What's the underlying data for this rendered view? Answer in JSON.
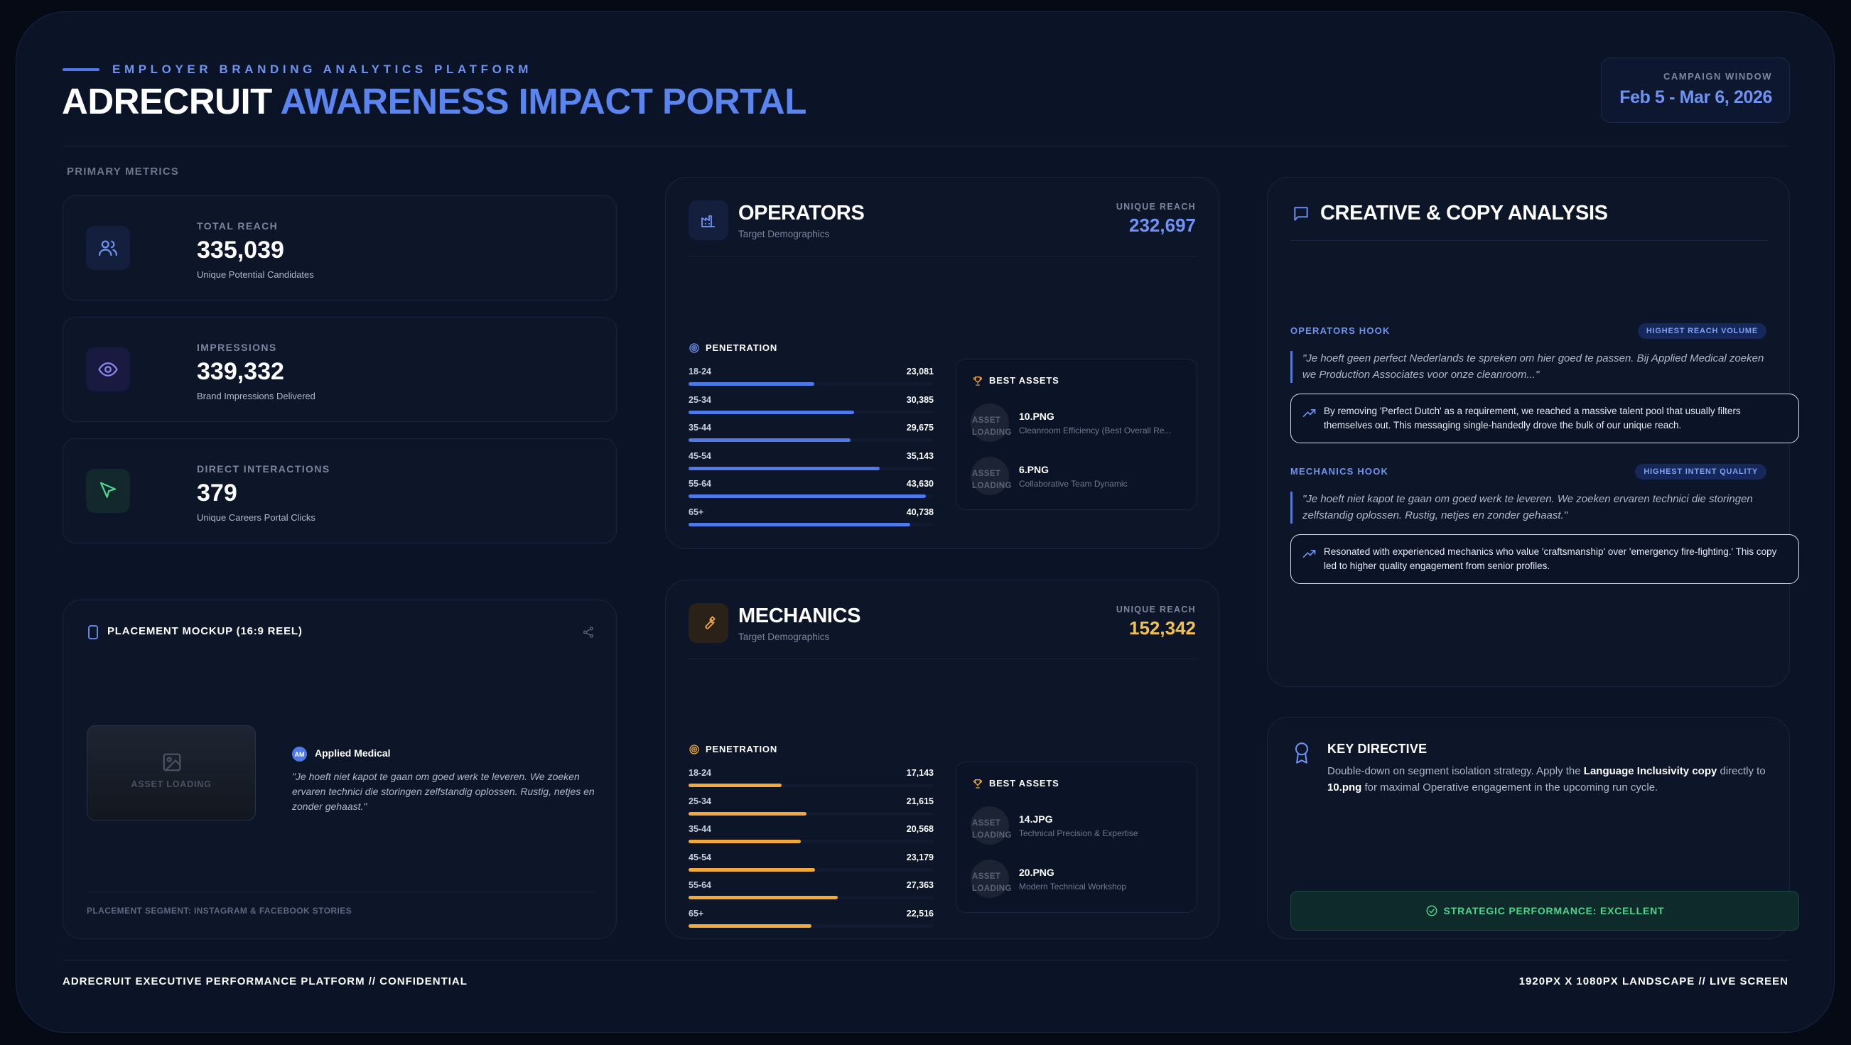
{
  "header": {
    "kicker": "EMPLOYER BRANDING ANALYTICS PLATFORM",
    "title_main": "ADRECRUIT",
    "title_accent": "AWARENESS IMPACT PORTAL",
    "campaign_label": "CAMPAIGN WINDOW",
    "campaign_value": "Feb 5 - Mar 6, 2026"
  },
  "metrics": {
    "section_label": "PRIMARY METRICS",
    "items": [
      {
        "label": "TOTAL REACH",
        "value": "335,039",
        "sub": "Unique Potential Candidates",
        "icon": "users-icon"
      },
      {
        "label": "IMPRESSIONS",
        "value": "339,332",
        "sub": "Brand Impressions Delivered",
        "icon": "eye-icon"
      },
      {
        "label": "DIRECT INTERACTIONS",
        "value": "379",
        "sub": "Unique Careers Portal Clicks",
        "icon": "cursor-icon"
      }
    ]
  },
  "mockup": {
    "title": "PLACEMENT MOCKUP (16:9 REEL)",
    "asset_loading": "ASSET LOADING",
    "brand_initials": "AM",
    "brand_name": "Applied Medical",
    "quote": "\"Je hoeft niet kapot te gaan om goed werk te leveren. We zoeken ervaren technici die storingen zelfstandig oplossen. Rustig, netjes en zonder gehaast.\"",
    "footer": "PLACEMENT SEGMENT: INSTAGRAM & FACEBOOK STORIES"
  },
  "segments": [
    {
      "name": "OPERATORS",
      "sub": "Target Demographics",
      "reach_label": "UNIQUE REACH",
      "reach_value": "232,697",
      "penetration_label": "PENETRATION",
      "best_label": "BEST ASSETS",
      "color": "#4f78e8",
      "rows": [
        {
          "label": "18-24",
          "value": "23,081",
          "n": 23081
        },
        {
          "label": "25-34",
          "value": "30,385",
          "n": 30385
        },
        {
          "label": "35-44",
          "value": "29,675",
          "n": 29675
        },
        {
          "label": "45-54",
          "value": "35,143",
          "n": 35143
        },
        {
          "label": "55-64",
          "value": "43,630",
          "n": 43630
        },
        {
          "label": "65+",
          "value": "40,738",
          "n": 40738
        }
      ],
      "assets": [
        {
          "name": "10.PNG",
          "desc": "Cleanroom Efficiency (Best Overall Re...",
          "placeholder": "ASSET LOADING"
        },
        {
          "name": "6.PNG",
          "desc": "Collaborative Team Dynamic",
          "placeholder": "ASSET LOADING"
        }
      ]
    },
    {
      "name": "MECHANICS",
      "sub": "Target Demographics",
      "reach_label": "UNIQUE REACH",
      "reach_value": "152,342",
      "penetration_label": "PENETRATION",
      "best_label": "BEST ASSETS",
      "color": "#f2a93b",
      "rows": [
        {
          "label": "18-24",
          "value": "17,143",
          "n": 17143
        },
        {
          "label": "25-34",
          "value": "21,615",
          "n": 21615
        },
        {
          "label": "35-44",
          "value": "20,568",
          "n": 20568
        },
        {
          "label": "45-54",
          "value": "23,179",
          "n": 23179
        },
        {
          "label": "55-64",
          "value": "27,363",
          "n": 27363
        },
        {
          "label": "65+",
          "value": "22,516",
          "n": 22516
        }
      ],
      "assets": [
        {
          "name": "14.JPG",
          "desc": "Technical Precision & Expertise",
          "placeholder": "ASSET LOADING"
        },
        {
          "name": "20.PNG",
          "desc": "Modern Technical Workshop",
          "placeholder": "ASSET LOADING"
        }
      ]
    }
  ],
  "creative": {
    "title": "CREATIVE & COPY ANALYSIS",
    "hooks": [
      {
        "label": "OPERATORS HOOK",
        "badge": "HIGHEST REACH VOLUME",
        "quote": "\"Je hoeft geen perfect Nederlands te spreken om hier goed te passen. Bij Applied Medical zoeken we Production Associates voor onze cleanroom...\"",
        "insight": "By removing 'Perfect Dutch' as a requirement, we reached a massive talent pool that usually filters themselves out. This messaging single-handedly drove the bulk of our unique reach."
      },
      {
        "label": "MECHANICS HOOK",
        "badge": "HIGHEST INTENT QUALITY",
        "quote": "\"Je hoeft niet kapot te gaan om goed werk te leveren. We zoeken ervaren technici die storingen zelfstandig oplossen. Rustig, netjes en zonder gehaast.\"",
        "insight": "Resonated with experienced mechanics who value 'craftsmanship' over 'emergency fire-fighting.' This copy led to higher quality engagement from senior profiles."
      }
    ]
  },
  "directive": {
    "title": "KEY DIRECTIVE",
    "text_1": "Double-down on segment isolation strategy. Apply the ",
    "text_bold_1": "Language Inclusivity copy",
    "text_2": " directly to ",
    "text_bold_2": "10.png",
    "text_3": " for maximal Operative engagement in the upcoming run cycle.",
    "status": "STRATEGIC PERFORMANCE: EXCELLENT"
  },
  "footer": {
    "left": "ADRECRUIT EXECUTIVE PERFORMANCE PLATFORM // CONFIDENTIAL",
    "right": "1920PX X 1080PX LANDSCAPE // LIVE SCREEN"
  }
}
